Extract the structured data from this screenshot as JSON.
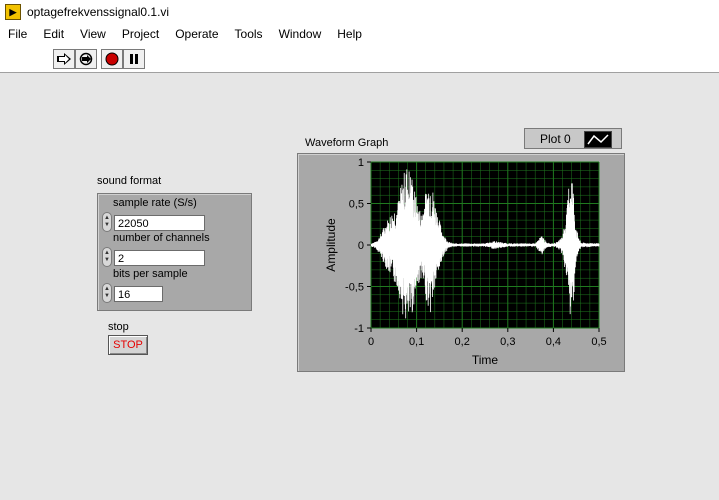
{
  "window": {
    "title": "optagefrekvenssignal0.1.vi",
    "icon": "labview-vi-icon"
  },
  "menu": [
    "File",
    "Edit",
    "View",
    "Project",
    "Operate",
    "Tools",
    "Window",
    "Help"
  ],
  "toolbar": {
    "buttons": [
      "run-arrow-icon",
      "run-continuously-icon",
      "abort-icon",
      "pause-icon"
    ]
  },
  "sound_format": {
    "label": "sound format",
    "sample_rate": {
      "label": "sample rate (S/s)",
      "value": "22050"
    },
    "channels": {
      "label": "number of channels",
      "value": "2"
    },
    "bits": {
      "label": "bits per sample",
      "value": "16"
    }
  },
  "stop": {
    "label": "stop",
    "button_text": "STOP"
  },
  "graph": {
    "label": "Waveform Graph",
    "legend": {
      "plot_name": "Plot 0"
    }
  },
  "chart_data": {
    "type": "line",
    "title": "Waveform Graph",
    "xlabel": "Time",
    "ylabel": "Amplitude",
    "xlim": [
      0,
      0.5
    ],
    "ylim": [
      -1,
      1
    ],
    "x_ticks": [
      "0",
      "0,1",
      "0,2",
      "0,3",
      "0,4",
      "0,5"
    ],
    "y_ticks": [
      "1",
      "0,5",
      "0",
      "-0,5",
      "-1"
    ],
    "grid": true,
    "background": "#000000",
    "grid_color": "#1f7a1f",
    "line_color": "#ffffff",
    "series": [
      {
        "name": "Plot 0",
        "envelope": [
          [
            0.0,
            0.02
          ],
          [
            0.01,
            0.04
          ],
          [
            0.02,
            0.12
          ],
          [
            0.03,
            0.25
          ],
          [
            0.04,
            0.35
          ],
          [
            0.05,
            0.45
          ],
          [
            0.06,
            0.55
          ],
          [
            0.07,
            0.85
          ],
          [
            0.08,
            1.0
          ],
          [
            0.09,
            0.85
          ],
          [
            0.1,
            0.55
          ],
          [
            0.11,
            0.4
          ],
          [
            0.12,
            0.65
          ],
          [
            0.13,
            0.85
          ],
          [
            0.14,
            0.55
          ],
          [
            0.15,
            0.3
          ],
          [
            0.16,
            0.12
          ],
          [
            0.17,
            0.04
          ],
          [
            0.18,
            0.02
          ],
          [
            0.2,
            0.02
          ],
          [
            0.25,
            0.02
          ],
          [
            0.27,
            0.05
          ],
          [
            0.3,
            0.02
          ],
          [
            0.36,
            0.02
          ],
          [
            0.375,
            0.12
          ],
          [
            0.385,
            0.03
          ],
          [
            0.4,
            0.02
          ],
          [
            0.41,
            0.04
          ],
          [
            0.42,
            0.12
          ],
          [
            0.43,
            0.45
          ],
          [
            0.435,
            0.85
          ],
          [
            0.44,
            0.95
          ],
          [
            0.445,
            0.6
          ],
          [
            0.45,
            0.2
          ],
          [
            0.46,
            0.03
          ],
          [
            0.5,
            0.02
          ]
        ]
      }
    ]
  }
}
